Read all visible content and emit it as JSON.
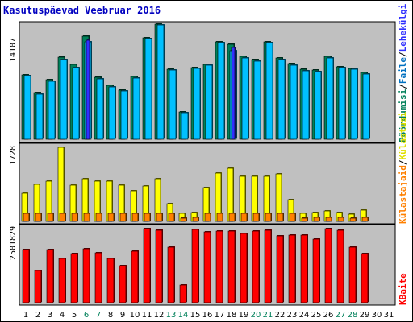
{
  "chart_data": [
    {
      "type": "bar",
      "title": "Kasutuspäevad Veebruar 2016",
      "panel": "Pöördumisi / Faile / Lehekülgi",
      "ymax_label": "14107",
      "ylim": [
        0,
        14107
      ],
      "categories": [
        "1",
        "2",
        "3",
        "4",
        "5",
        "6",
        "7",
        "8",
        "9",
        "10",
        "11",
        "12",
        "13",
        "14",
        "15",
        "16",
        "17",
        "18",
        "19",
        "20",
        "21",
        "22",
        "23",
        "24",
        "25",
        "26",
        "27",
        "28",
        "29",
        "30",
        "31"
      ],
      "series": [
        {
          "name": "Pöördumisi",
          "color": "#00805a",
          "values": [
            7900,
            5700,
            7300,
            10100,
            9200,
            12600,
            7600,
            6600,
            6000,
            7700,
            12400,
            14107,
            8600,
            3400,
            8800,
            9200,
            11900,
            11600,
            10200,
            9800,
            11900,
            10000,
            9300,
            8600,
            8500,
            10200,
            8900,
            8700,
            8200,
            0,
            0
          ]
        },
        {
          "name": "Faile",
          "color": "#00c0ff",
          "values": [
            7800,
            5500,
            7100,
            9800,
            8800,
            11900,
            7400,
            6400,
            5900,
            7500,
            12300,
            14000,
            8500,
            3300,
            8700,
            9100,
            11800,
            10900,
            10000,
            9600,
            11800,
            9800,
            9100,
            8400,
            8300,
            10000,
            8800,
            8600,
            8000,
            0,
            0
          ]
        },
        {
          "name": "Lehekülgi",
          "color": "#3030ff",
          "values": [
            0,
            0,
            0,
            0,
            0,
            12100,
            0,
            0,
            0,
            0,
            0,
            0,
            0,
            0,
            0,
            0,
            0,
            11200,
            0,
            0,
            0,
            0,
            0,
            0,
            0,
            0,
            0,
            0,
            0,
            0,
            0
          ]
        }
      ]
    },
    {
      "type": "bar",
      "panel": "Külastajaid / Külastusi",
      "ymax_label": "1728",
      "ylim": [
        0,
        1728
      ],
      "categories": [
        "1",
        "2",
        "3",
        "4",
        "5",
        "6",
        "7",
        "8",
        "9",
        "10",
        "11",
        "12",
        "13",
        "14",
        "15",
        "16",
        "17",
        "18",
        "19",
        "20",
        "21",
        "22",
        "23",
        "24",
        "25",
        "26",
        "27",
        "28",
        "29",
        "30",
        "31"
      ],
      "series": [
        {
          "name": "Külastusi",
          "color": "#ffff00",
          "values": [
            650,
            870,
            940,
            1728,
            840,
            1000,
            930,
            940,
            850,
            710,
            830,
            1000,
            420,
            180,
            200,
            790,
            1120,
            1240,
            1060,
            1060,
            1060,
            1100,
            510,
            190,
            200,
            250,
            200,
            170,
            260,
            0,
            0
          ]
        },
        {
          "name": "Külastajaid",
          "color": "#ff8000",
          "values": [
            190,
            190,
            190,
            190,
            190,
            190,
            190,
            190,
            190,
            190,
            190,
            190,
            190,
            80,
            90,
            190,
            190,
            190,
            190,
            190,
            190,
            190,
            190,
            80,
            90,
            90,
            90,
            80,
            90,
            0,
            0
          ]
        }
      ]
    },
    {
      "type": "bar",
      "panel": "KBaite",
      "ymax_label": "2501829",
      "ylim": [
        0,
        2501829
      ],
      "categories": [
        "1",
        "2",
        "3",
        "4",
        "5",
        "6",
        "7",
        "8",
        "9",
        "10",
        "11",
        "12",
        "13",
        "14",
        "15",
        "16",
        "17",
        "18",
        "19",
        "20",
        "21",
        "22",
        "23",
        "24",
        "25",
        "26",
        "27",
        "28",
        "29",
        "30",
        "31"
      ],
      "series": [
        {
          "name": "KBaite",
          "color": "#ff0000",
          "values": [
            1790000,
            1080000,
            1800000,
            1500000,
            1660000,
            1820000,
            1680000,
            1490000,
            1240000,
            1740000,
            2501829,
            2460000,
            1870000,
            590000,
            2480000,
            2400000,
            2420000,
            2410000,
            2350000,
            2420000,
            2460000,
            2260000,
            2280000,
            2280000,
            2150000,
            2501829,
            2450000,
            1880000,
            1650000,
            0,
            0
          ]
        }
      ]
    }
  ],
  "labels": {
    "title": "Kasutuspäevad Veebruar 2016",
    "ymax_top": "14107",
    "ymax_mid": "1728",
    "ymax_bot": "2501829",
    "side_top": [
      {
        "text": "Pöördumisi",
        "color": "#00805a"
      },
      {
        "text": "/",
        "color": "#000000"
      },
      {
        "text": "Faile",
        "color": "#0070c0"
      },
      {
        "text": "/",
        "color": "#000000"
      },
      {
        "text": "Lehekülgi",
        "color": "#3030ff"
      }
    ],
    "side_mid": [
      {
        "text": "Külastajaid",
        "color": "#ff8000"
      },
      {
        "text": "/",
        "color": "#000000"
      },
      {
        "text": "Külastusi",
        "color": "#e0e000"
      }
    ],
    "side_bot": [
      {
        "text": "KBaite",
        "color": "#ff0000"
      }
    ],
    "weekend_days": [
      "6",
      "7",
      "13",
      "14",
      "20",
      "21",
      "27",
      "28"
    ],
    "weekday_color": "#000000",
    "weekend_color": "#00805a"
  }
}
